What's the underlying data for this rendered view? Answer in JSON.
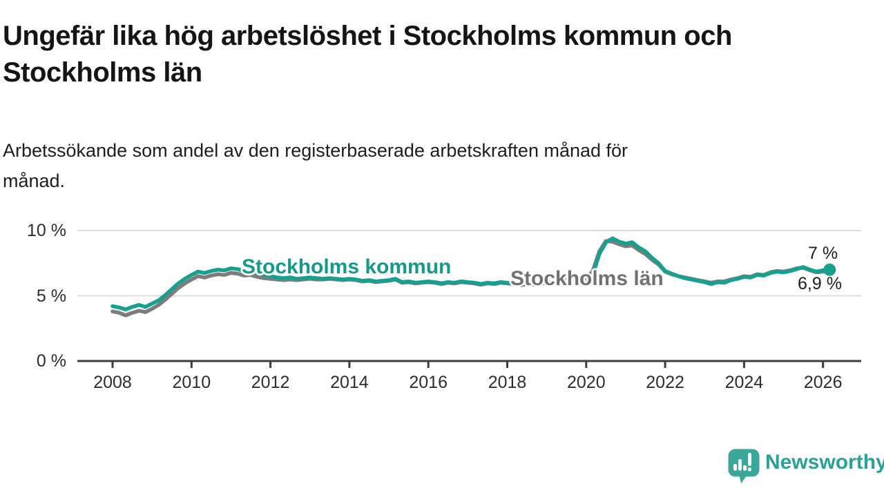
{
  "header": {
    "title_lines": [
      "Ungefär lika hög arbetslöshet i Stockholms kommun och",
      "Stockholms län"
    ],
    "subtitle_lines": [
      "Arbetssökande som andel av den registerbaserade arbetskraften månad för",
      "månad."
    ]
  },
  "footer": {
    "brand_name": "Newsworthy",
    "brand_text_color": "#2aa096",
    "brand_mark_color": "#3ba79b"
  },
  "colors": {
    "kommun_line": "#17a08d",
    "lan_line": "#7d7d7d",
    "kommun_label_text": "#149a8b",
    "lan_label_text": "#717171",
    "gridline": "#dcdcdc",
    "axis": "#3c3c3c",
    "text": "#1d1d1d"
  },
  "chart_data": {
    "type": "line",
    "title": "Ungefär lika hög arbetslöshet i Stockholms kommun och Stockholms län",
    "subtitle": "Arbetssökande som andel av den registerbaserade arbetskraften månad för månad.",
    "unit": "%",
    "x_start_year": 2008.0,
    "x_step_months": 2,
    "xlim": [
      2007.1,
      2027.0
    ],
    "ylim": [
      0,
      10.5
    ],
    "grid": "horizontal",
    "legend_position": "inline-labels",
    "x_ticks": [
      "2008",
      "2010",
      "2012",
      "2014",
      "2016",
      "2018",
      "2020",
      "2022",
      "2024",
      "2026"
    ],
    "y_ticks": [
      {
        "value": 0,
        "label": "0 %"
      },
      {
        "value": 5,
        "label": "5 %"
      },
      {
        "value": 10,
        "label": "10 %"
      }
    ],
    "series": [
      {
        "name": "Stockholms kommun",
        "color": "#17a08d",
        "end_label": "7 %",
        "end_value": 7.0,
        "end_dot": true,
        "values": [
          4.2,
          4.1,
          3.95,
          4.15,
          4.3,
          4.15,
          4.4,
          4.65,
          5.05,
          5.5,
          5.95,
          6.3,
          6.6,
          6.85,
          6.75,
          6.9,
          7.0,
          6.95,
          7.1,
          7.05,
          6.9,
          6.95,
          6.75,
          6.6,
          6.5,
          6.4,
          6.35,
          6.4,
          6.3,
          6.35,
          6.4,
          6.35,
          6.3,
          6.35,
          6.3,
          6.25,
          6.3,
          6.25,
          6.15,
          6.2,
          6.1,
          6.15,
          6.2,
          6.3,
          6.05,
          6.1,
          6.0,
          6.05,
          6.1,
          6.05,
          5.95,
          6.05,
          6.0,
          6.1,
          6.05,
          6.0,
          5.9,
          6.0,
          5.95,
          6.05,
          6.0,
          5.95,
          5.85,
          5.95,
          5.9,
          6.0,
          6.0,
          6.05,
          6.1,
          6.2,
          6.25,
          6.3,
          6.35,
          6.6,
          8.2,
          9.1,
          9.4,
          9.15,
          9.0,
          9.1,
          8.7,
          8.4,
          7.9,
          7.5,
          6.9,
          6.7,
          6.5,
          6.35,
          6.25,
          6.15,
          6.05,
          5.9,
          6.05,
          6.0,
          6.2,
          6.3,
          6.45,
          6.4,
          6.6,
          6.55,
          6.75,
          6.85,
          6.8,
          6.9,
          7.05,
          7.2,
          7.0,
          6.85,
          6.95,
          7.0
        ]
      },
      {
        "name": "Stockholms län",
        "color": "#7d7d7d",
        "end_label": "6,9 %",
        "end_value": 6.9,
        "end_dot": false,
        "values": [
          3.8,
          3.7,
          3.5,
          3.7,
          3.85,
          3.75,
          4.0,
          4.3,
          4.7,
          5.15,
          5.6,
          5.95,
          6.25,
          6.5,
          6.4,
          6.55,
          6.65,
          6.6,
          6.75,
          6.7,
          6.55,
          6.6,
          6.45,
          6.35,
          6.3,
          6.25,
          6.2,
          6.25,
          6.2,
          6.25,
          6.3,
          6.25,
          6.25,
          6.3,
          6.25,
          6.2,
          6.25,
          6.2,
          6.1,
          6.15,
          6.05,
          6.1,
          6.15,
          6.25,
          6.0,
          6.05,
          5.95,
          6.0,
          6.05,
          6.0,
          5.9,
          6.0,
          5.95,
          6.05,
          6.0,
          5.95,
          5.85,
          5.95,
          5.9,
          6.0,
          5.95,
          5.9,
          5.8,
          5.9,
          5.85,
          5.95,
          5.95,
          6.0,
          6.05,
          6.15,
          6.2,
          6.25,
          6.3,
          6.9,
          8.4,
          9.2,
          9.15,
          8.95,
          8.8,
          8.85,
          8.5,
          8.2,
          7.75,
          7.4,
          6.85,
          6.65,
          6.5,
          6.4,
          6.3,
          6.2,
          6.1,
          6.0,
          6.1,
          6.1,
          6.25,
          6.35,
          6.5,
          6.45,
          6.65,
          6.6,
          6.8,
          6.9,
          6.85,
          6.95,
          7.1,
          7.15,
          6.95,
          6.8,
          6.85,
          6.9
        ]
      }
    ]
  }
}
